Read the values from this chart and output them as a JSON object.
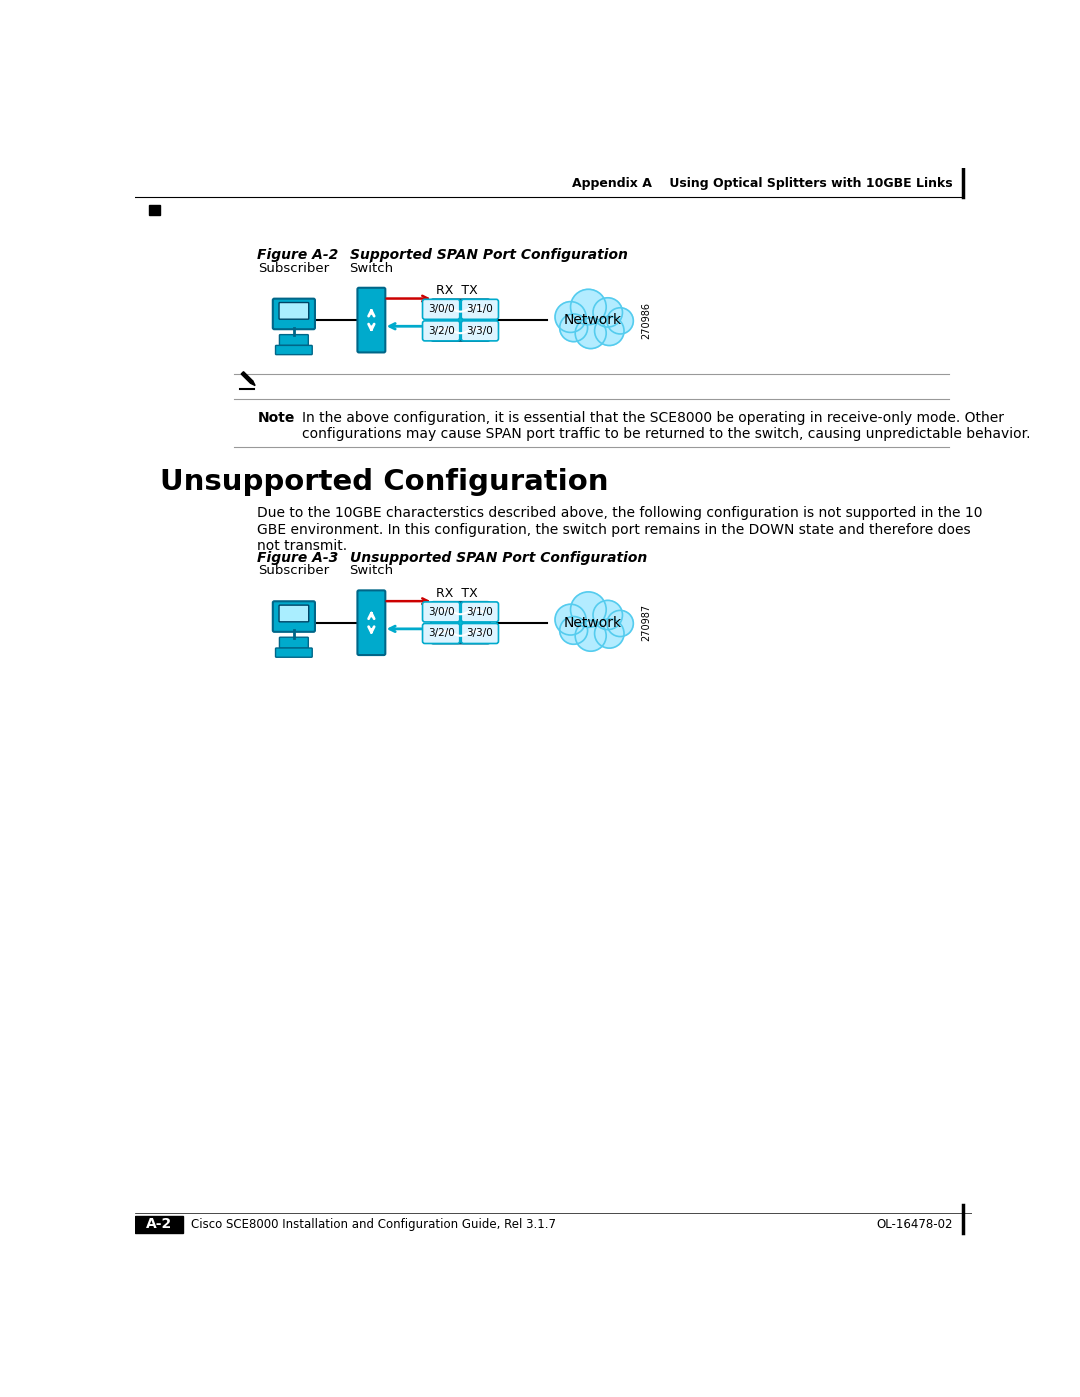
{
  "page_title_right": "Appendix A    Using Optical Splitters with 10GBE Links",
  "fig_a2_label": "Figure A-2",
  "fig_a2_title": "Supported SPAN Port Configuration",
  "fig_a3_label": "Figure A-3",
  "fig_a3_title": "Unsupported SPAN Port Configuration",
  "subscriber_label": "Subscriber",
  "switch_label": "Switch",
  "network_label": "Network",
  "rx_tx_label": "RX  TX",
  "ports_top": [
    "3/0/0",
    "3/1/0"
  ],
  "ports_bottom": [
    "3/2/0",
    "3/3/0"
  ],
  "fig_number_a2": "270986",
  "fig_number_a3": "270987",
  "note_label": "Note",
  "note_text": "In the above configuration, it is essential that the SCE8000 be operating in receive-only mode. Other\nconfigurations may cause SPAN port traffic to be returned to the switch, causing unpredictable behavior.",
  "section_title": "Unsupported Configuration",
  "body_text": "Due to the 10GBE characterstics described above, the following configuration is not supported in the 10\nGBE environment. In this configuration, the switch port remains in the DOWN state and therefore does\nnot transmit.",
  "footer_left": "Cisco SCE8000 Installation and Configuration Guide, Rel 3.1.7",
  "footer_right": "OL-16478-02",
  "footer_page": "A-2",
  "bg_color": "#ffffff",
  "cyan_color": "#00bcd4",
  "dark_cyan": "#0097a7",
  "black": "#000000",
  "red_arrow_color": "#cc0000",
  "blue_arrow_color": "#00aacc",
  "cloud_color": "#b3ecff",
  "port_bg": "#ddf4ff",
  "port_border": "#00aacc"
}
